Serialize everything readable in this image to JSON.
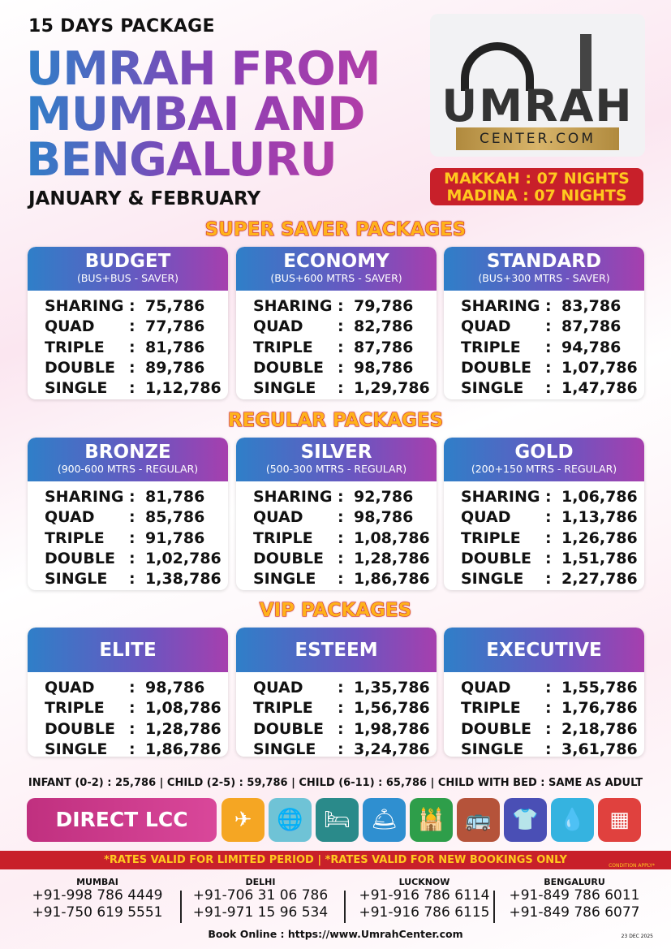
{
  "header": {
    "subtitle": "15 DAYS PACKAGE",
    "title_lines": [
      "UMRAH FROM",
      "MUMBAI AND",
      "BENGALURU"
    ],
    "months": "JANUARY & FEBRUARY"
  },
  "logo": {
    "word": "UMRAH",
    "domain": "CENTER.COM"
  },
  "nights": {
    "makkah": "MAKKAH : 07 NIGHTS",
    "madina": "MADINA : 07 NIGHTS"
  },
  "sections": [
    {
      "title": "SUPER SAVER PACKAGES",
      "cards": [
        {
          "name": "BUDGET",
          "sub": "(BUS+BUS - SAVER)",
          "rows": [
            [
              "SHARING",
              "75,786"
            ],
            [
              "QUAD",
              "77,786"
            ],
            [
              "TRIPLE",
              "81,786"
            ],
            [
              "DOUBLE",
              "89,786"
            ],
            [
              "SINGLE",
              "1,12,786"
            ]
          ]
        },
        {
          "name": "ECONOMY",
          "sub": "(BUS+600 MTRS - SAVER)",
          "rows": [
            [
              "SHARING",
              "79,786"
            ],
            [
              "QUAD",
              "82,786"
            ],
            [
              "TRIPLE",
              "87,786"
            ],
            [
              "DOUBLE",
              "98,786"
            ],
            [
              "SINGLE",
              "1,29,786"
            ]
          ]
        },
        {
          "name": "STANDARD",
          "sub": "(BUS+300 MTRS - SAVER)",
          "rows": [
            [
              "SHARING",
              "83,786"
            ],
            [
              "QUAD",
              "87,786"
            ],
            [
              "TRIPLE",
              "94,786"
            ],
            [
              "DOUBLE",
              "1,07,786"
            ],
            [
              "SINGLE",
              "1,47,786"
            ]
          ]
        }
      ]
    },
    {
      "title": "REGULAR  PACKAGES",
      "cards": [
        {
          "name": "BRONZE",
          "sub": "(900-600 MTRS - REGULAR)",
          "rows": [
            [
              "SHARING",
              "81,786"
            ],
            [
              "QUAD",
              "85,786"
            ],
            [
              "TRIPLE",
              "91,786"
            ],
            [
              "DOUBLE",
              "1,02,786"
            ],
            [
              "SINGLE",
              "1,38,786"
            ]
          ]
        },
        {
          "name": "SILVER",
          "sub": "(500-300 MTRS - REGULAR)",
          "rows": [
            [
              "SHARING",
              "92,786"
            ],
            [
              "QUAD",
              "98,786"
            ],
            [
              "TRIPLE",
              "1,08,786"
            ],
            [
              "DOUBLE",
              "1,28,786"
            ],
            [
              "SINGLE",
              "1,86,786"
            ]
          ]
        },
        {
          "name": "GOLD",
          "sub": "(200+150 MTRS - REGULAR)",
          "rows": [
            [
              "SHARING",
              "1,06,786"
            ],
            [
              "QUAD",
              "1,13,786"
            ],
            [
              "TRIPLE",
              "1,26,786"
            ],
            [
              "DOUBLE",
              "1,51,786"
            ],
            [
              "SINGLE",
              "2,27,786"
            ]
          ]
        }
      ]
    },
    {
      "title": "VIP PACKAGES",
      "cards": [
        {
          "name": "ELITE",
          "sub": "",
          "rows": [
            [
              "QUAD",
              "98,786"
            ],
            [
              "TRIPLE",
              "1,08,786"
            ],
            [
              "DOUBLE",
              "1,28,786"
            ],
            [
              "SINGLE",
              "1,86,786"
            ]
          ]
        },
        {
          "name": "ESTEEM",
          "sub": "",
          "rows": [
            [
              "QUAD",
              "1,35,786"
            ],
            [
              "TRIPLE",
              "1,56,786"
            ],
            [
              "DOUBLE",
              "1,98,786"
            ],
            [
              "SINGLE",
              "3,24,786"
            ]
          ]
        },
        {
          "name": "EXECUTIVE",
          "sub": "",
          "rows": [
            [
              "QUAD",
              "1,55,786"
            ],
            [
              "TRIPLE",
              "1,76,786"
            ],
            [
              "DOUBLE",
              "2,18,786"
            ],
            [
              "SINGLE",
              "3,61,786"
            ]
          ]
        }
      ]
    }
  ],
  "extras": "INFANT (0-2) : 25,786  |  CHILD (2-5) : 59,786  |  CHILD (6-11) : 65,786  |  CHILD WITH BED : SAME AS ADULT",
  "direct_lcc": "DIRECT LCC",
  "amenity_icons": [
    {
      "icon": "airplane-icon",
      "glyph": "✈",
      "color": "#f5a623"
    },
    {
      "icon": "passport-visa-icon",
      "glyph": "🌐",
      "color": "#6fc3d6"
    },
    {
      "icon": "hotel-bed-icon",
      "glyph": "🛏",
      "color": "#2a8a8a"
    },
    {
      "icon": "meal-cloche-icon",
      "glyph": "🛎",
      "color": "#2f8fd0"
    },
    {
      "icon": "mosque-ziyarat-icon",
      "glyph": "🕌",
      "color": "#2e9e4a"
    },
    {
      "icon": "bus-icon",
      "glyph": "🚌",
      "color": "#b5533a"
    },
    {
      "icon": "laundry-icon",
      "glyph": "👕",
      "color": "#4a4fb5"
    },
    {
      "icon": "zamzam-water-icon",
      "glyph": "💧",
      "color": "#35b3e0"
    },
    {
      "icon": "sim-card-icon",
      "glyph": "▦",
      "color": "#e0413e"
    }
  ],
  "notice": "*RATES VALID FOR LIMITED PERIOD  |  *RATES VALID FOR NEW BOOKINGS ONLY",
  "condition": "CONDITION APPLY*",
  "contacts": [
    {
      "city": "MUMBAI",
      "phones": [
        "+91-998 786 4449",
        "+91-750  619  5551"
      ]
    },
    {
      "city": "DELHI",
      "phones": [
        "+91-706 31 06 786",
        "+91-971 15 96 534"
      ]
    },
    {
      "city": "LUCKNOW",
      "phones": [
        "+91-916 786 6114",
        "+91-916 786 6115"
      ]
    },
    {
      "city": "BENGALURU",
      "phones": [
        "+91-849 786 6011",
        "+91-849 786 6077"
      ]
    }
  ],
  "book_online": "Book Online : https://www.UmrahCenter.com",
  "date": "23 DEC 2025"
}
